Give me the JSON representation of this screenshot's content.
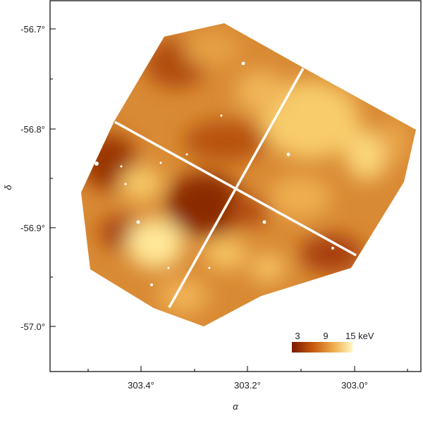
{
  "map": {
    "x_axis_label": "α",
    "y_axis_label": "δ",
    "x_ticks": [
      "303.4°",
      "303.2°",
      "303.0°"
    ],
    "y_ticks": [
      "-56.7°",
      "-56.8°",
      "-56.9°",
      "-57.0°"
    ],
    "colorbar": {
      "tick_labels": [
        "3",
        "9",
        "15 keV"
      ],
      "colors": [
        "#7a1a00",
        "#c85a10",
        "#f0b050",
        "#fff6c0"
      ]
    },
    "palette": {
      "dark": "#8a2a00",
      "mid": "#d8862c",
      "light": "#ffe89a",
      "frame": "#000000",
      "chip_gap": "#ffffff"
    }
  }
}
